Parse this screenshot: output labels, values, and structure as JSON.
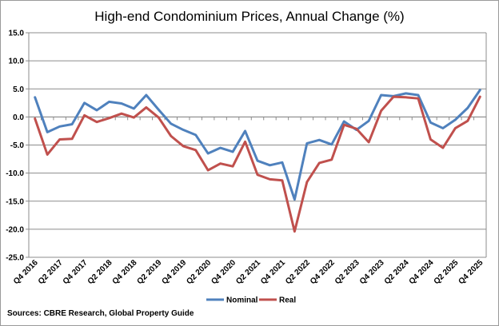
{
  "chart_data": {
    "type": "line",
    "title": "High-end Condominium Prices, Annual Change (%)",
    "source": "Sources: CBRE Research, Global Property Guide",
    "ylim": [
      -25,
      15
    ],
    "yticks": [
      "15.0",
      "10.0",
      "5.0",
      "0.0",
      "-5.0",
      "-10.0",
      "-15.0",
      "-20.0",
      "-25.0"
    ],
    "grid": "horizontal",
    "legend": "bottom",
    "x": [
      "Q4 2016",
      "Q1 2017",
      "Q2 2017",
      "Q3 2017",
      "Q4 2017",
      "Q1 2018",
      "Q2 2018",
      "Q3 2018",
      "Q4 2018",
      "Q1 2019",
      "Q2 2019",
      "Q3 2019",
      "Q4 2019",
      "Q1 2020",
      "Q2 2020",
      "Q3 2020",
      "Q4 2020",
      "Q1 2021",
      "Q2 2021",
      "Q3 2021",
      "Q4 2021",
      "Q1 2022",
      "Q2 2022",
      "Q3 2022",
      "Q4 2022",
      "Q1 2023",
      "Q2 2023",
      "Q3 2023",
      "Q4 2023",
      "Q1 2024",
      "Q2 2024",
      "Q3 2024",
      "Q4 2024",
      "Q1 2025",
      "Q2 2025",
      "Q3 2025",
      "Q4 2025"
    ],
    "xtick_labels": [
      "Q4 2016",
      "Q2 2017",
      "Q4 2017",
      "Q2 2018",
      "Q4 2018",
      "Q2 2019",
      "Q4 2019",
      "Q2 2020",
      "Q4 2020",
      "Q2 2021",
      "Q4 2021",
      "Q2 2022",
      "Q4 2022",
      "Q2 2023",
      "Q4 2023",
      "Q2 2024",
      "Q4 2024",
      "Q2 2025",
      "Q4 2025"
    ],
    "series": [
      {
        "name": "Nominal",
        "color": "#4f81bd",
        "values": [
          3.5,
          -2.7,
          -1.7,
          -1.3,
          2.5,
          1.2,
          2.7,
          2.4,
          1.5,
          3.9,
          1.3,
          -1.2,
          -2.3,
          -3.2,
          -6.5,
          -5.5,
          -6.2,
          -2.5,
          -7.8,
          -8.6,
          -8.1,
          -14.7,
          -4.7,
          -4.1,
          -4.9,
          -0.8,
          -2.3,
          -0.7,
          3.9,
          3.7,
          4.2,
          3.9,
          -1.0,
          -2.0,
          -0.5,
          1.6,
          4.8
        ]
      },
      {
        "name": "Real",
        "color": "#c0504d",
        "values": [
          -0.3,
          -6.7,
          -4.0,
          -3.9,
          0.3,
          -0.9,
          -0.2,
          0.6,
          -0.1,
          1.7,
          -0.1,
          -3.4,
          -5.2,
          -5.9,
          -9.5,
          -8.3,
          -8.8,
          -4.4,
          -10.3,
          -11.1,
          -11.3,
          -20.4,
          -11.6,
          -8.2,
          -7.6,
          -1.4,
          -2.1,
          -4.5,
          1.1,
          3.6,
          3.5,
          3.3,
          -4.0,
          -5.5,
          -2.0,
          -0.7,
          3.6
        ]
      }
    ]
  }
}
